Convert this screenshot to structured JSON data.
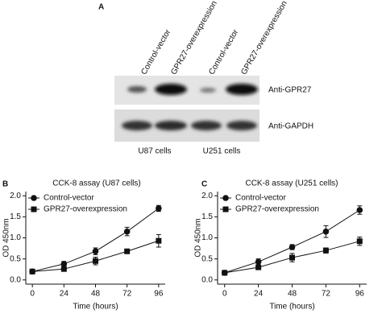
{
  "panel_a": {
    "label": "A",
    "lanes": [
      "Control-vector",
      "GPR27-overexpression",
      "Control-vector",
      "GPR27-overexpression"
    ],
    "rows": [
      "Anti-GPR27",
      "Anti-GAPDH"
    ],
    "groups": [
      "U87 cells",
      "U251 cells"
    ]
  },
  "chart_data": [
    {
      "type": "line",
      "panel_label": "B",
      "title": "CCK-8 assay (U87 cells)",
      "xlabel": "Time (hours)",
      "ylabel": "OD 450nm",
      "x": [
        0,
        24,
        48,
        72,
        96
      ],
      "xlim": [
        -5,
        101
      ],
      "xticks": [
        0,
        24,
        48,
        72,
        96
      ],
      "ylim": [
        -0.1,
        2.1
      ],
      "yticks": [
        {
          "value": 0,
          "label": "0.0"
        },
        {
          "value": 0.5,
          "label": "0.5"
        },
        {
          "value": 1,
          "label": "1.0"
        },
        {
          "value": 1.5,
          "label": "1.5"
        },
        {
          "value": 2,
          "label": "2.0"
        }
      ],
      "legend": "upper left",
      "series": [
        {
          "name": "Control-vector",
          "color": "#111111",
          "marker": "circle",
          "values": [
            0.2,
            0.38,
            0.68,
            1.15,
            1.7
          ],
          "errors": [
            0.03,
            0.06,
            0.08,
            0.1,
            0.07
          ]
        },
        {
          "name": "GPR27-overexpression",
          "color": "#111111",
          "marker": "square",
          "values": [
            0.2,
            0.26,
            0.45,
            0.68,
            0.93
          ],
          "errors": [
            0.03,
            0.05,
            0.09,
            0.05,
            0.15
          ]
        }
      ]
    },
    {
      "type": "line",
      "panel_label": "C",
      "title": "CCK-8 assay (U251 cells)",
      "xlabel": "Time (hours)",
      "ylabel": "OD 450nm",
      "x": [
        0,
        24,
        48,
        72,
        96
      ],
      "xlim": [
        -5,
        101
      ],
      "xticks": [
        0,
        24,
        48,
        72,
        96
      ],
      "ylim": [
        -0.1,
        2.1
      ],
      "yticks": [
        {
          "value": 0,
          "label": "0.0"
        },
        {
          "value": 0.5,
          "label": "0.5"
        },
        {
          "value": 1,
          "label": "1.0"
        },
        {
          "value": 1.5,
          "label": "1.5"
        },
        {
          "value": 2,
          "label": "2.0"
        }
      ],
      "legend": "upper left",
      "series": [
        {
          "name": "Control-vector",
          "color": "#111111",
          "marker": "circle",
          "values": [
            0.17,
            0.43,
            0.78,
            1.15,
            1.66
          ],
          "errors": [
            0.03,
            0.07,
            0.06,
            0.14,
            0.1
          ]
        },
        {
          "name": "GPR27-overexpression",
          "color": "#111111",
          "marker": "square",
          "values": [
            0.17,
            0.3,
            0.53,
            0.7,
            0.92
          ],
          "errors": [
            0.02,
            0.04,
            0.1,
            0.06,
            0.1
          ]
        }
      ]
    }
  ]
}
